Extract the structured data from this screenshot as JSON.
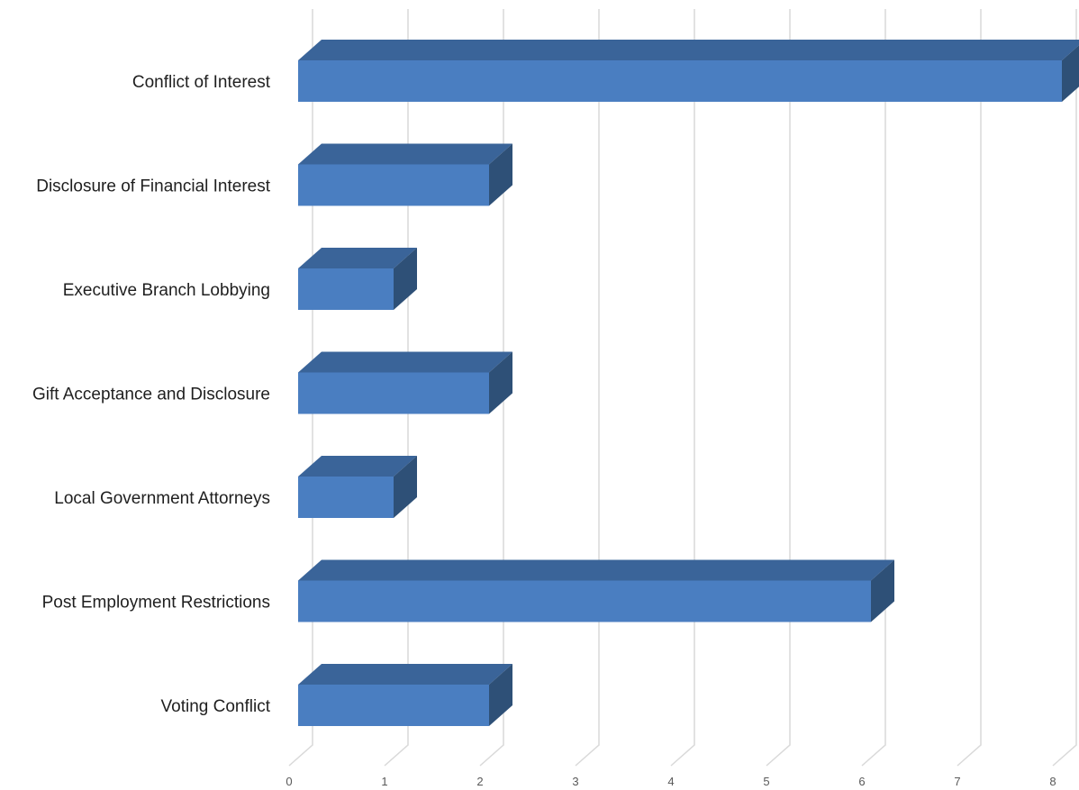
{
  "chart_data": {
    "type": "bar",
    "orientation": "horizontal",
    "style": "3d",
    "title": "",
    "xlabel": "",
    "ylabel": "",
    "categories": [
      "Conflict of Interest",
      "Disclosure of Financial Interest",
      "Executive Branch Lobbying",
      "Gift Acceptance and Disclosure",
      "Local Government Attorneys",
      "Post Employment Restrictions",
      "Voting Conflict"
    ],
    "values": [
      8,
      2,
      1,
      2,
      1,
      6,
      2
    ],
    "xlim": [
      0,
      8
    ],
    "x_ticks": [
      "0",
      "1",
      "2",
      "3",
      "4",
      "5",
      "6",
      "7",
      "8"
    ],
    "grid": true,
    "legend": "none",
    "colors": {
      "bar_front": "#4a7ec1",
      "bar_top": "#3a6499",
      "bar_side": "#2e5077",
      "grid": "#d9d9d9",
      "text": "#1f1f1f",
      "tick_text": "#595959"
    }
  }
}
